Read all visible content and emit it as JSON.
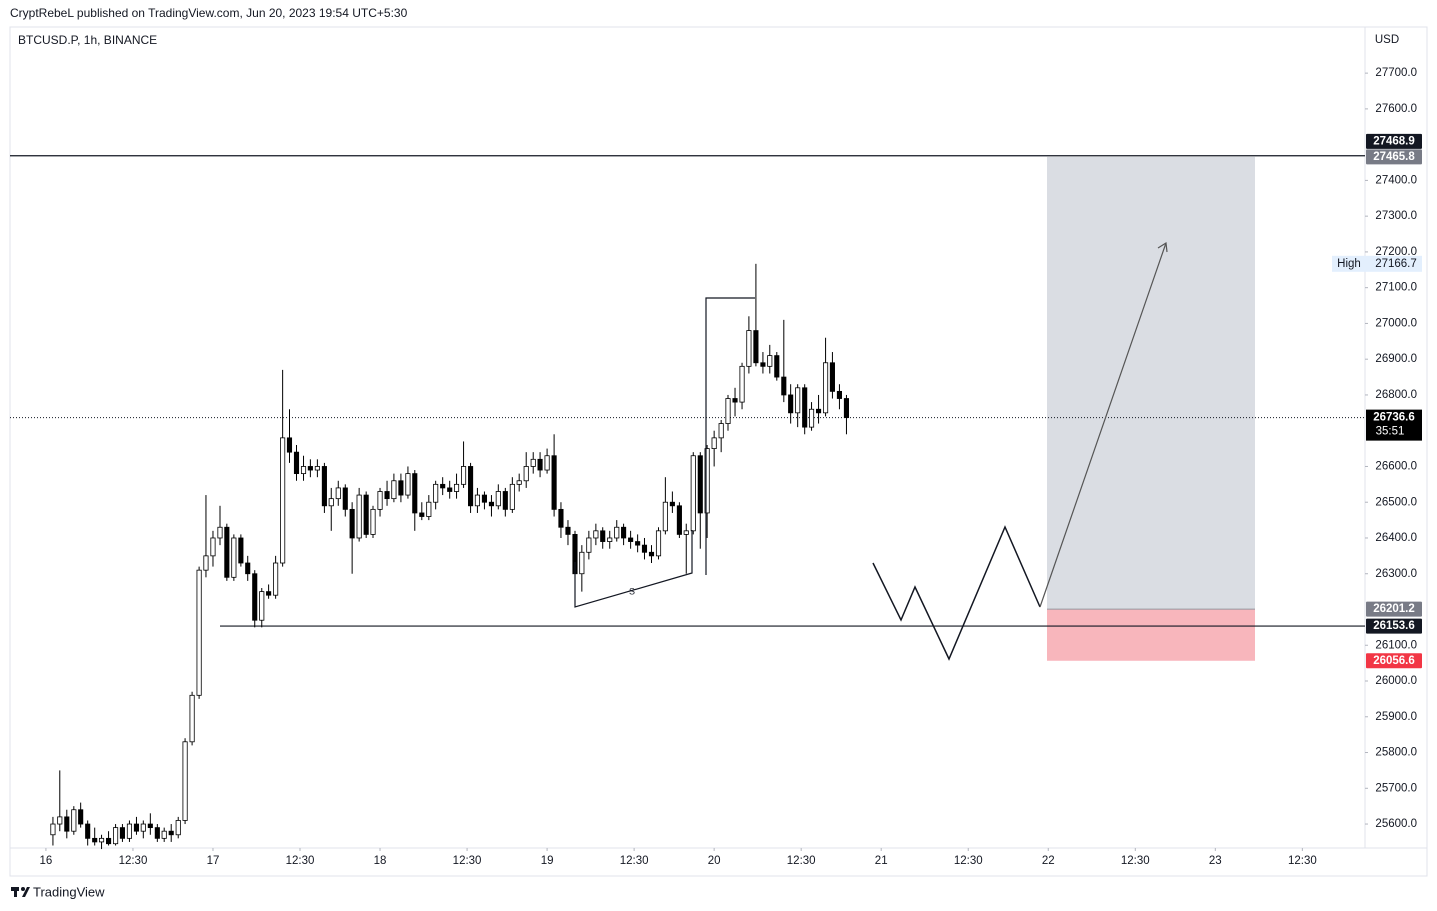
{
  "chart_data": {
    "type": "candlestick",
    "header": "CryptRebeL published on TradingView.com, Jun 20, 2023 19:54 UTC+5:30",
    "title": "BTCUSD.P, 1h, BINANCE",
    "currency": "USD",
    "footer": "TradingView",
    "up_color": "#ffffff",
    "down_color": "#000000",
    "border_color": "#000000",
    "x": [
      16.042,
      16.083,
      16.125,
      16.167,
      16.208,
      16.25,
      16.292,
      16.333,
      16.375,
      16.417,
      16.458,
      16.5,
      16.542,
      16.583,
      16.625,
      16.667,
      16.708,
      16.75,
      16.792,
      16.833,
      16.875,
      16.917,
      16.958,
      17,
      17.042,
      17.083,
      17.125,
      17.167,
      17.208,
      17.25,
      17.292,
      17.333,
      17.375,
      17.417,
      17.458,
      17.5,
      17.542,
      17.583,
      17.625,
      17.667,
      17.708,
      17.75,
      17.792,
      17.833,
      17.875,
      17.917,
      17.958,
      18,
      18.042,
      18.083,
      18.125,
      18.167,
      18.208,
      18.25,
      18.292,
      18.333,
      18.375,
      18.417,
      18.458,
      18.5,
      18.542,
      18.583,
      18.625,
      18.667,
      18.708,
      18.75,
      18.792,
      18.833,
      18.875,
      18.917,
      18.958,
      19,
      19.042,
      19.083,
      19.125,
      19.167,
      19.208,
      19.25,
      19.292,
      19.333,
      19.375,
      19.417,
      19.458,
      19.5,
      19.542,
      19.583,
      19.625,
      19.667,
      19.708,
      19.75,
      19.792,
      19.833,
      19.875,
      19.917,
      19.958,
      20,
      20.042,
      20.083,
      20.125,
      20.167,
      20.208,
      20.25,
      20.292,
      20.333,
      20.375,
      20.417,
      20.458,
      20.5,
      20.542,
      20.583,
      20.625,
      20.667,
      20.708,
      20.75,
      20.792
    ],
    "open": [
      25570,
      25600,
      25620,
      25580,
      25640,
      25600,
      25560,
      25550,
      25560,
      25545,
      25590,
      25560,
      25600,
      25580,
      25600,
      25590,
      25560,
      25580,
      25570,
      25610,
      25830,
      25960,
      26310,
      26350,
      26400,
      26430,
      26290,
      26400,
      26330,
      26300,
      26170,
      26250,
      26240,
      26330,
      26680,
      26640,
      26580,
      26600,
      26590,
      26600,
      26490,
      26510,
      26540,
      26480,
      26400,
      26520,
      26410,
      26480,
      26530,
      26510,
      26560,
      26520,
      26580,
      26470,
      26460,
      26500,
      26550,
      26540,
      26530,
      26550,
      26600,
      26490,
      26520,
      26500,
      26490,
      26530,
      26480,
      26550,
      26560,
      26600,
      26620,
      26590,
      26630,
      26480,
      26430,
      26410,
      26300,
      26360,
      26400,
      26420,
      26390,
      26400,
      26430,
      26400,
      26390,
      26380,
      26360,
      26350,
      26420,
      26500,
      26490,
      26410,
      26420,
      26630,
      26470,
      26650,
      26680,
      26720,
      26790,
      26780,
      26880,
      26980,
      26890,
      26880,
      26910,
      26850,
      26800,
      26750,
      26820,
      26710,
      26760,
      26750,
      26890,
      26810,
      26790
    ],
    "high": [
      25620,
      25750,
      25640,
      25650,
      25660,
      25610,
      25590,
      25570,
      25580,
      25600,
      25600,
      25610,
      25620,
      25610,
      25630,
      25600,
      25590,
      25600,
      25620,
      25840,
      25970,
      26320,
      26520,
      26420,
      26490,
      26440,
      26410,
      26410,
      26350,
      26310,
      26260,
      26270,
      26350,
      26870,
      26760,
      26660,
      26630,
      26620,
      26620,
      26610,
      26540,
      26560,
      26550,
      26500,
      26540,
      26530,
      26490,
      26540,
      26560,
      26580,
      26580,
      26600,
      26590,
      26500,
      26520,
      26560,
      26570,
      26560,
      26580,
      26670,
      26610,
      26540,
      26530,
      26520,
      26550,
      26540,
      26570,
      26580,
      26640,
      26640,
      26640,
      26650,
      26690,
      26500,
      26450,
      26420,
      26380,
      26420,
      26440,
      26430,
      26420,
      26450,
      26440,
      26420,
      26410,
      26400,
      26380,
      26430,
      26570,
      26530,
      26500,
      26440,
      26640,
      26640,
      26660,
      26700,
      26730,
      26800,
      26820,
      26890,
      27020,
      27166.7,
      26920,
      26940,
      26920,
      27010,
      26830,
      26830,
      26830,
      26780,
      26800,
      26960,
      26920,
      26830,
      26800
    ],
    "low": [
      25540,
      25580,
      25560,
      25570,
      25590,
      25540,
      25540,
      25530,
      25540,
      25540,
      25550,
      25550,
      25570,
      25560,
      25570,
      25550,
      25550,
      25550,
      25560,
      25600,
      25820,
      25950,
      26290,
      26320,
      26380,
      26280,
      26280,
      26320,
      26280,
      26150,
      26150,
      26230,
      26230,
      26320,
      26610,
      26560,
      26560,
      26570,
      26570,
      26470,
      26420,
      26490,
      26460,
      26300,
      26390,
      26400,
      26400,
      26460,
      26490,
      26500,
      26500,
      26510,
      26420,
      26450,
      26450,
      26480,
      26520,
      26510,
      26510,
      26540,
      26470,
      26470,
      26480,
      26460,
      26480,
      26460,
      26470,
      26530,
      26540,
      26580,
      26570,
      26580,
      26460,
      26400,
      26380,
      26210,
      26250,
      26340,
      26380,
      26370,
      26370,
      26390,
      26380,
      26370,
      26360,
      26340,
      26330,
      26340,
      26410,
      26470,
      26400,
      26300,
      26410,
      26370,
      26400,
      26600,
      26640,
      26700,
      26740,
      26760,
      26860,
      26880,
      26860,
      26860,
      26840,
      26780,
      26720,
      26710,
      26690,
      26700,
      26720,
      26740,
      26790,
      26760,
      26690
    ],
    "close": [
      25600,
      25620,
      25580,
      25640,
      25600,
      25560,
      25550,
      25560,
      25545,
      25590,
      25560,
      25600,
      25580,
      25600,
      25590,
      25560,
      25580,
      25570,
      25610,
      25830,
      25960,
      26310,
      26350,
      26400,
      26430,
      26290,
      26400,
      26330,
      26300,
      26170,
      26250,
      26240,
      26330,
      26680,
      26640,
      26580,
      26600,
      26590,
      26600,
      26490,
      26510,
      26540,
      26480,
      26400,
      26520,
      26410,
      26480,
      26530,
      26510,
      26560,
      26520,
      26580,
      26470,
      26460,
      26500,
      26550,
      26540,
      26530,
      26550,
      26600,
      26490,
      26520,
      26500,
      26490,
      26530,
      26480,
      26550,
      26560,
      26600,
      26620,
      26590,
      26630,
      26480,
      26430,
      26410,
      26300,
      26360,
      26400,
      26420,
      26390,
      26400,
      26430,
      26400,
      26390,
      26380,
      26360,
      26350,
      26420,
      26500,
      26490,
      26410,
      26420,
      26630,
      26470,
      26650,
      26680,
      26720,
      26790,
      26780,
      26880,
      26980,
      26890,
      26880,
      26910,
      26850,
      26800,
      26750,
      26820,
      26710,
      26760,
      26750,
      26890,
      26810,
      26790,
      26736.6
    ],
    "xlim": [
      15.785,
      23.896
    ],
    "ylim": [
      25533,
      27829
    ],
    "xticks": [
      16,
      {
        "value": 16.521,
        "label": "12:30"
      },
      17,
      {
        "value": 17.521,
        "label": "12:30"
      },
      18,
      {
        "value": 18.521,
        "label": "12:30"
      },
      19,
      {
        "value": 19.521,
        "label": "12:30"
      },
      20,
      {
        "value": 20.521,
        "label": "12:30"
      },
      21,
      {
        "value": 21.521,
        "label": "12:30"
      },
      22,
      {
        "value": 22.521,
        "label": "12:30"
      },
      23,
      {
        "value": 23.521,
        "label": "12:30"
      }
    ],
    "yticks": [
      {
        "value": 25600,
        "label": "25600.0"
      },
      {
        "value": 25700,
        "label": "25700.0"
      },
      {
        "value": 25800,
        "label": "25800.0"
      },
      {
        "value": 25900,
        "label": "25900.0"
      },
      {
        "value": 26000,
        "label": "26000.0"
      },
      {
        "value": 26100,
        "label": "26100.0"
      },
      {
        "value": 26300,
        "label": "26300.0"
      },
      {
        "value": 26400,
        "label": "26400.0"
      },
      {
        "value": 26500,
        "label": "26500.0"
      },
      {
        "value": 26600,
        "label": "26600.0"
      },
      {
        "value": 26800,
        "label": "26800.0"
      },
      {
        "value": 26900,
        "label": "26900.0"
      },
      {
        "value": 27000,
        "label": "27000.0"
      },
      {
        "value": 27100,
        "label": "27100.0"
      },
      {
        "value": 27200,
        "label": "27200.0"
      },
      {
        "value": 27300,
        "label": "27300.0"
      },
      {
        "value": 27400,
        "label": "27400.0"
      },
      {
        "value": 27600,
        "label": "27600.0"
      },
      {
        "value": 27700,
        "label": "27700.0"
      }
    ],
    "price_badges": [
      {
        "value": 27468.9,
        "color": "#131722",
        "line": "full"
      },
      {
        "value": 27465.8,
        "color": "#787b86",
        "line": "none"
      },
      {
        "value": 26201.2,
        "color": "#787b86",
        "line": "none"
      },
      {
        "value": 26153.6,
        "color": "#131722",
        "line": "partial"
      },
      {
        "value": 26056.6,
        "color": "#f23645",
        "line": "none"
      }
    ],
    "high_badge": {
      "label": "High",
      "value": 27166.7
    },
    "last_price": {
      "value": 26736.6,
      "countdown": "35:51"
    },
    "swing_label": "S"
  }
}
